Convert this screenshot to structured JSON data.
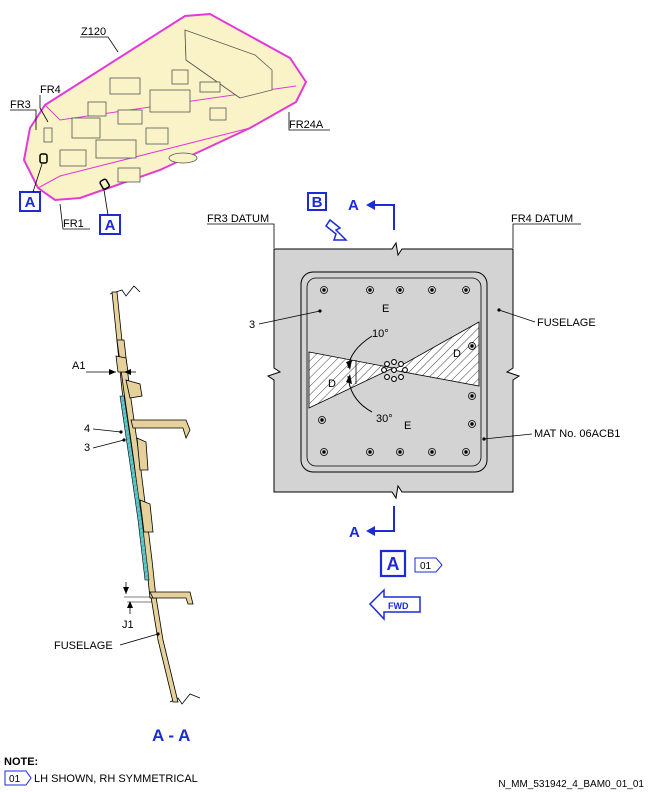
{
  "aircraft_view": {
    "zone": "Z120",
    "frames": {
      "fr3": "FR3",
      "fr4": "FR4",
      "fr1": "FR1",
      "fr24a": "FR24A"
    },
    "view_marker": "A"
  },
  "detail_view": {
    "fr3_datum": "FR3 DATUM",
    "fr4_datum": "FR4 DATUM",
    "section_letter": "A",
    "view_b": "B",
    "zone_e": "E",
    "zone_d": "D",
    "angle_top": "10°",
    "angle_bottom": "30°",
    "item_3": "3",
    "fuselage": "FUSELAGE",
    "mat_no": "MAT No. 06ACB1",
    "view_label": "A",
    "effectivity_ref": "01",
    "fwd": "FWD"
  },
  "section_view": {
    "a1": "A1",
    "item_4": "4",
    "item_3": "3",
    "j1": "J1",
    "fuselage": "FUSELAGE",
    "title": "A - A"
  },
  "notes": {
    "heading": "NOTE:",
    "ref": "01",
    "text": "LH SHOWN, RH SYMMETRICAL"
  },
  "drawing_id": "N_MM_531942_4_BAM0_01_01",
  "colors": {
    "zone_outline": "#e23ad6",
    "zone_fill": "#fbf3c8",
    "callout_blue": "#1b2bd6",
    "plate_grey": "#d3d3d3",
    "section_tan": "#e7d19a",
    "section_cyan": "#5fc7c9"
  }
}
